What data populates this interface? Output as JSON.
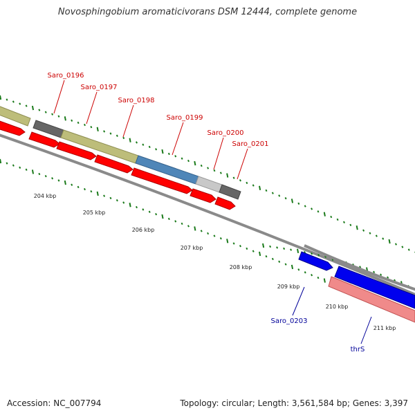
{
  "title": "Novosphingobium aromaticivorans DSM 12444, complete genome",
  "footer": {
    "accession": "Accession: NC_007794",
    "summary": "Topology: circular; Length: 3,561,584 bp; Genes: 3,397"
  },
  "colors": {
    "gene_label_red": "#cc0000",
    "gene_label_blue": "#000099",
    "tick_green": "#1a7a1a",
    "cds_red": "#ff0000",
    "cds_blue": "#0000ee",
    "backbone": "#888888",
    "olive": "#bdbd7a",
    "steel_blue": "#4f86b8",
    "dark_gray": "#666666",
    "light_gray": "#c8c8c8",
    "salmon": "#f08a8a"
  },
  "scale_labels": [
    "204 kbp",
    "205 kbp",
    "206 kbp",
    "207 kbp",
    "208 kbp",
    "209 kbp",
    "210 kbp",
    "211 kbp"
  ],
  "gene_labels_top": [
    "Saro_0196",
    "Saro_0197",
    "Saro_0198",
    "Saro_0199",
    "Saro_0200",
    "Saro_0201"
  ],
  "gene_labels_bottom": [
    "Saro_0203",
    "thrS"
  ]
}
